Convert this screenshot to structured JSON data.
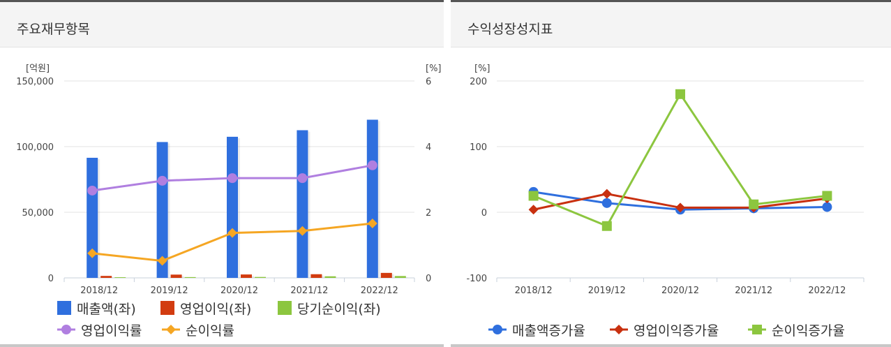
{
  "left_panel": {
    "title": "주요재무항목"
  },
  "right_panel": {
    "title": "수익성장성지표"
  },
  "chart_data": [
    {
      "type": "bar",
      "categories": [
        "2018/12",
        "2019/12",
        "2020/12",
        "2021/12",
        "2022/12"
      ],
      "y_unit_left": "[억원]",
      "y_unit_right": "[%]",
      "ylim": [
        0,
        150000
      ],
      "ylim_right": [
        0,
        6
      ],
      "y_ticks": [
        "150,000",
        "100,000",
        "50,000",
        "0"
      ],
      "y_ticks_right": [
        "6",
        "4",
        "2",
        "0"
      ],
      "grid": true,
      "legend_position": "bottom",
      "series": [
        {
          "name": "매출액(좌)",
          "type": "bar",
          "axis": "left",
          "color": "#2f6fde",
          "values": [
            91500,
            103500,
            107500,
            112500,
            120500
          ]
        },
        {
          "name": "영업이익(좌)",
          "type": "bar",
          "axis": "left",
          "color": "#d23c10",
          "values": [
            1500,
            2500,
            2600,
            2800,
            3800
          ]
        },
        {
          "name": "당기순이익(좌)",
          "type": "bar",
          "axis": "left",
          "color": "#8cc63f",
          "values": [
            500,
            600,
            700,
            1200,
            1400
          ]
        },
        {
          "name": "영업이익률",
          "type": "line",
          "axis": "right",
          "color": "#b07fe0",
          "marker": "circle",
          "values": [
            2.66,
            2.96,
            3.04,
            3.04,
            3.43
          ]
        },
        {
          "name": "순이익률",
          "type": "line",
          "axis": "right",
          "color": "#f5a623",
          "marker": "diamond",
          "values": [
            0.75,
            0.52,
            1.37,
            1.43,
            1.66
          ]
        }
      ]
    },
    {
      "type": "line",
      "categories": [
        "2018/12",
        "2019/12",
        "2020/12",
        "2021/12",
        "2022/12"
      ],
      "y_unit": "[%]",
      "ylim": [
        -100,
        200
      ],
      "y_ticks": [
        "200",
        "100",
        "0",
        "-100"
      ],
      "grid": true,
      "legend_position": "bottom",
      "series": [
        {
          "name": "매출액증가율",
          "color": "#2f6fde",
          "marker": "circle",
          "values": [
            31,
            14,
            4,
            6,
            8
          ]
        },
        {
          "name": "영업이익증가율",
          "color": "#c8300f",
          "marker": "diamond",
          "values": [
            4,
            28,
            7,
            7,
            21
          ]
        },
        {
          "name": "순이익증가율",
          "color": "#8cc63f",
          "marker": "square",
          "values": [
            25,
            -21,
            180,
            12,
            25
          ]
        }
      ]
    }
  ]
}
